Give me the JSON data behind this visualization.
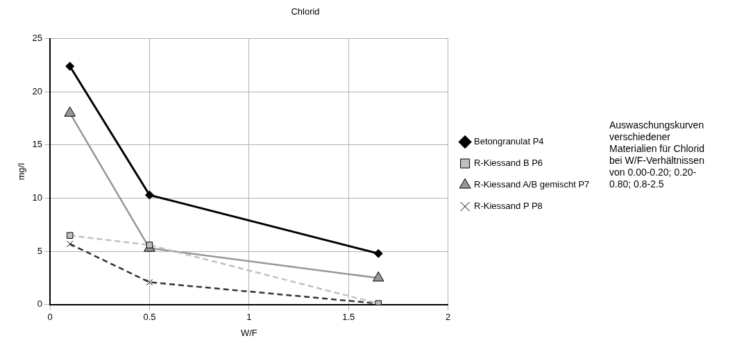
{
  "chart_data": {
    "type": "line",
    "title": "Chlorid",
    "xlabel": "W/F",
    "ylabel": "mg/l",
    "xlim": [
      0,
      2
    ],
    "xticks": [
      0,
      0.5,
      1,
      1.5,
      2
    ],
    "ylim": [
      0,
      25
    ],
    "yticks": [
      0,
      5,
      10,
      15,
      20,
      25
    ],
    "grid": true,
    "legend": "right",
    "annotations": [
      "Auswaschungskurven verschiedener Materialien für Chlorid bei W/F-Verhältnissen von 0.00-0.20; 0.20-0.80; 0.8-2.5"
    ],
    "x": [
      0.1,
      0.5,
      1.65
    ],
    "series": [
      {
        "name": "Betongranulat P4",
        "color": "#000000",
        "marker": "diamond",
        "line_style": "solid",
        "values": [
          22.4,
          10.3,
          4.8
        ]
      },
      {
        "name": "R-Kiessand B P6",
        "color": "#c0c0c0",
        "marker": "square",
        "line_style": "dashed",
        "values": [
          6.5,
          5.6,
          0.1
        ]
      },
      {
        "name": "R-Kiessand A/B gemischt P7",
        "color": "#969696",
        "marker": "triangle",
        "line_style": "solid",
        "values": [
          18,
          5.3,
          2.5
        ]
      },
      {
        "name": "R-Kiessand P P8",
        "color": "#333333",
        "marker": "cross",
        "line_style": "dashed",
        "values": [
          5.7,
          2.1,
          0.1
        ]
      }
    ]
  }
}
